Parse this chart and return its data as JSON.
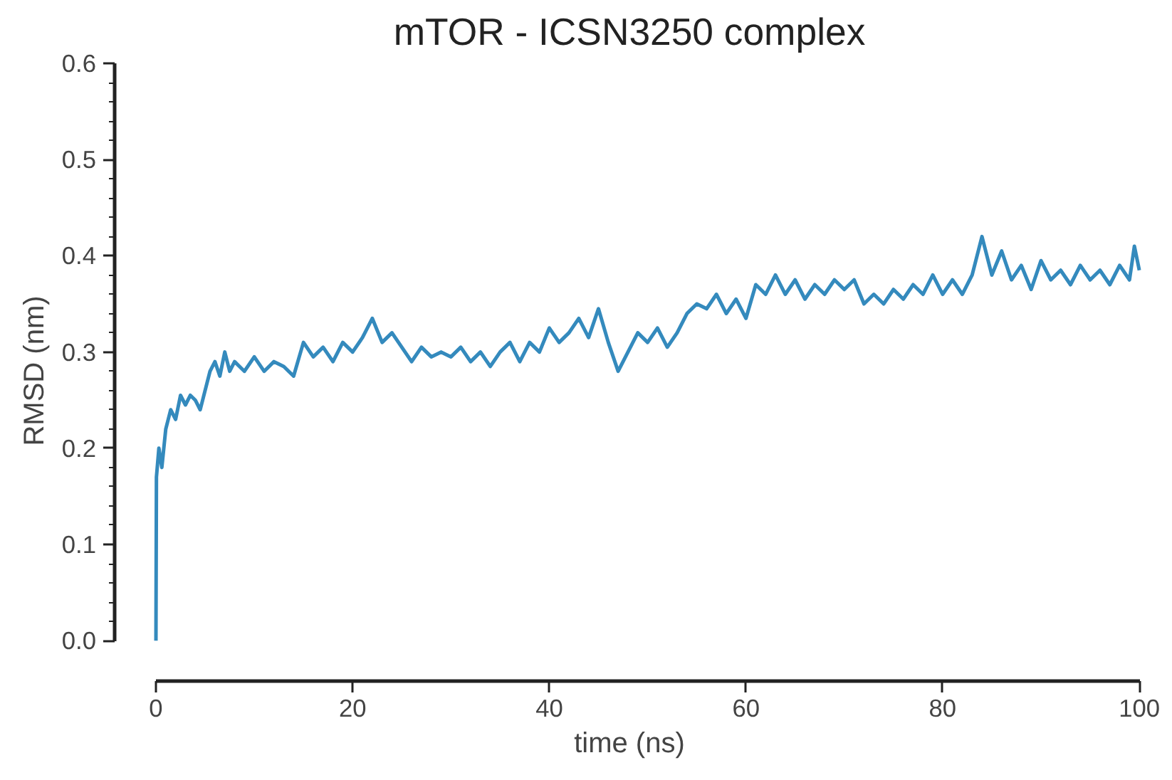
{
  "chart_data": {
    "type": "line",
    "title": "mTOR - ICSN3250 complex",
    "xlabel": "time (ns)",
    "ylabel": "RMSD (nm)",
    "xlim": [
      0,
      100
    ],
    "ylim": [
      0,
      0.6
    ],
    "xticks": [
      0,
      20,
      40,
      60,
      80,
      100
    ],
    "yticks": [
      {
        "value": 0,
        "label": "0.0"
      },
      0.1,
      0.2,
      0.3,
      0.4,
      0.5,
      0.6
    ],
    "grid": false,
    "series": [
      {
        "color": "#348abd",
        "x": [
          0,
          0.05,
          0.3,
          0.6,
          1,
          1.5,
          2,
          2.5,
          3,
          3.5,
          4,
          4.5,
          5,
          5.5,
          6,
          6.5,
          7,
          7.5,
          8,
          9,
          10,
          11,
          12,
          13,
          14,
          15,
          16,
          17,
          18,
          19,
          20,
          21,
          22,
          23,
          24,
          25,
          26,
          27,
          28,
          29,
          30,
          31,
          32,
          33,
          34,
          35,
          36,
          37,
          38,
          39,
          40,
          41,
          42,
          43,
          44,
          45,
          46,
          47,
          48,
          49,
          50,
          51,
          52,
          53,
          54,
          55,
          56,
          57,
          58,
          59,
          60,
          61,
          62,
          63,
          64,
          65,
          66,
          67,
          68,
          69,
          70,
          71,
          72,
          73,
          74,
          75,
          76,
          77,
          78,
          79,
          80,
          81,
          82,
          83,
          84,
          85,
          86,
          87,
          88,
          89,
          90,
          91,
          92,
          93,
          94,
          95,
          96,
          97,
          98,
          99,
          99.5,
          100
        ],
        "values": [
          0,
          0.17,
          0.2,
          0.18,
          0.22,
          0.24,
          0.23,
          0.255,
          0.245,
          0.255,
          0.25,
          0.24,
          0.26,
          0.28,
          0.29,
          0.275,
          0.3,
          0.28,
          0.29,
          0.28,
          0.295,
          0.28,
          0.29,
          0.285,
          0.275,
          0.31,
          0.295,
          0.305,
          0.29,
          0.31,
          0.3,
          0.315,
          0.335,
          0.31,
          0.32,
          0.305,
          0.29,
          0.305,
          0.295,
          0.3,
          0.295,
          0.305,
          0.29,
          0.3,
          0.285,
          0.3,
          0.31,
          0.29,
          0.31,
          0.3,
          0.325,
          0.31,
          0.32,
          0.335,
          0.315,
          0.345,
          0.31,
          0.28,
          0.3,
          0.32,
          0.31,
          0.325,
          0.305,
          0.32,
          0.34,
          0.35,
          0.345,
          0.36,
          0.34,
          0.355,
          0.335,
          0.37,
          0.36,
          0.38,
          0.36,
          0.375,
          0.355,
          0.37,
          0.36,
          0.375,
          0.365,
          0.375,
          0.35,
          0.36,
          0.35,
          0.365,
          0.355,
          0.37,
          0.36,
          0.38,
          0.36,
          0.375,
          0.36,
          0.38,
          0.42,
          0.38,
          0.405,
          0.375,
          0.39,
          0.365,
          0.395,
          0.375,
          0.385,
          0.37,
          0.39,
          0.375,
          0.385,
          0.37,
          0.39,
          0.375,
          0.41,
          0.385
        ]
      }
    ]
  }
}
